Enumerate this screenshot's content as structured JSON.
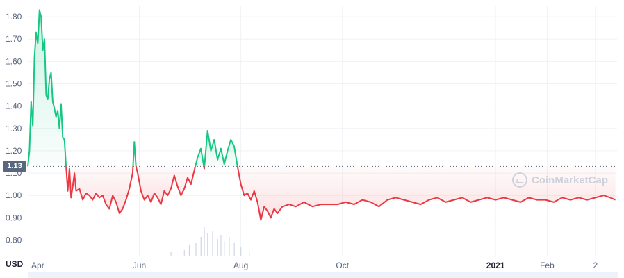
{
  "watermark": {
    "text": "CoinMarketCap",
    "icon": "coinmarketcap-logo-icon"
  },
  "currency_label": "USD",
  "colors": {
    "up": "#16c784",
    "down": "#ea3943",
    "up_fill": "#16c784",
    "down_fill": "#ea3943",
    "volume": "#cfd6e4"
  },
  "chart_data": {
    "type": "line",
    "title": "",
    "xlabel": "",
    "ylabel": "USD",
    "reference_value": 1.13,
    "reference_label": "1.13",
    "ylim": [
      0.73,
      1.85
    ],
    "y_ticks": [
      "0.80",
      "0.90",
      "1.00",
      "1.10",
      "1.20",
      "1.30",
      "1.40",
      "1.50",
      "1.60",
      "1.70",
      "1.80"
    ],
    "y_tick_values": [
      0.8,
      0.9,
      1.0,
      1.1,
      1.2,
      1.3,
      1.4,
      1.5,
      1.6,
      1.7,
      1.8
    ],
    "x_ticks": [
      {
        "label": "Apr",
        "date": "2020-04-01",
        "bold": false
      },
      {
        "label": "Jun",
        "date": "2020-06-01",
        "bold": false
      },
      {
        "label": "Aug",
        "date": "2020-08-01",
        "bold": false
      },
      {
        "label": "Oct",
        "date": "2020-10-01",
        "bold": false
      },
      {
        "label": "2021",
        "date": "2021-01-01",
        "bold": true
      },
      {
        "label": "Feb",
        "date": "2021-02-01",
        "bold": false
      },
      {
        "label": "2",
        "date": "2021-03-02",
        "bold": false
      }
    ],
    "x_range": [
      "2020-03-26",
      "2021-03-15"
    ],
    "grid": true,
    "series": [
      {
        "price": [
          [
            "2020-03-26",
            1.13
          ],
          [
            "2020-03-27",
            1.2
          ],
          [
            "2020-03-28",
            1.42
          ],
          [
            "2020-03-29",
            1.31
          ],
          [
            "2020-03-30",
            1.62
          ],
          [
            "2020-03-31",
            1.73
          ],
          [
            "2020-04-01",
            1.68
          ],
          [
            "2020-04-02",
            1.83
          ],
          [
            "2020-04-03",
            1.8
          ],
          [
            "2020-04-04",
            1.65
          ],
          [
            "2020-04-05",
            1.7
          ],
          [
            "2020-04-06",
            1.45
          ],
          [
            "2020-04-07",
            1.43
          ],
          [
            "2020-04-08",
            1.52
          ],
          [
            "2020-04-09",
            1.55
          ],
          [
            "2020-04-10",
            1.42
          ],
          [
            "2020-04-11",
            1.39
          ],
          [
            "2020-04-12",
            1.35
          ],
          [
            "2020-04-13",
            1.38
          ],
          [
            "2020-04-14",
            1.3
          ],
          [
            "2020-04-15",
            1.41
          ],
          [
            "2020-04-16",
            1.26
          ],
          [
            "2020-04-17",
            1.25
          ],
          [
            "2020-04-18",
            1.13
          ],
          [
            "2020-04-19",
            1.02
          ],
          [
            "2020-04-20",
            1.12
          ],
          [
            "2020-04-21",
            0.99
          ],
          [
            "2020-04-22",
            1.04
          ],
          [
            "2020-04-23",
            1.1
          ],
          [
            "2020-04-24",
            1.02
          ],
          [
            "2020-04-26",
            1.03
          ],
          [
            "2020-04-28",
            0.98
          ],
          [
            "2020-04-30",
            1.01
          ],
          [
            "2020-05-02",
            1.0
          ],
          [
            "2020-05-04",
            0.98
          ],
          [
            "2020-05-06",
            1.01
          ],
          [
            "2020-05-08",
            0.99
          ],
          [
            "2020-05-10",
            1.0
          ],
          [
            "2020-05-12",
            0.96
          ],
          [
            "2020-05-14",
            0.94
          ],
          [
            "2020-05-16",
            1.0
          ],
          [
            "2020-05-18",
            0.97
          ],
          [
            "2020-05-20",
            0.92
          ],
          [
            "2020-05-22",
            0.94
          ],
          [
            "2020-05-24",
            0.98
          ],
          [
            "2020-05-26",
            1.03
          ],
          [
            "2020-05-28",
            1.1
          ],
          [
            "2020-05-29",
            1.24
          ],
          [
            "2020-05-30",
            1.13
          ],
          [
            "2020-05-31",
            1.1
          ],
          [
            "2020-06-02",
            1.02
          ],
          [
            "2020-06-04",
            0.98
          ],
          [
            "2020-06-06",
            1.0
          ],
          [
            "2020-06-08",
            0.97
          ],
          [
            "2020-06-10",
            1.01
          ],
          [
            "2020-06-12",
            0.99
          ],
          [
            "2020-06-14",
            0.96
          ],
          [
            "2020-06-16",
            1.02
          ],
          [
            "2020-06-18",
            1.0
          ],
          [
            "2020-06-20",
            1.03
          ],
          [
            "2020-06-22",
            1.09
          ],
          [
            "2020-06-24",
            1.04
          ],
          [
            "2020-06-26",
            1.0
          ],
          [
            "2020-06-28",
            1.03
          ],
          [
            "2020-06-30",
            1.08
          ],
          [
            "2020-07-02",
            1.05
          ],
          [
            "2020-07-04",
            1.11
          ],
          [
            "2020-07-06",
            1.17
          ],
          [
            "2020-07-08",
            1.21
          ],
          [
            "2020-07-10",
            1.12
          ],
          [
            "2020-07-12",
            1.29
          ],
          [
            "2020-07-14",
            1.2
          ],
          [
            "2020-07-16",
            1.25
          ],
          [
            "2020-07-18",
            1.16
          ],
          [
            "2020-07-20",
            1.21
          ],
          [
            "2020-07-22",
            1.14
          ],
          [
            "2020-07-24",
            1.2
          ],
          [
            "2020-07-26",
            1.25
          ],
          [
            "2020-07-28",
            1.22
          ],
          [
            "2020-07-30",
            1.13
          ],
          [
            "2020-08-01",
            1.05
          ],
          [
            "2020-08-03",
            1.0
          ],
          [
            "2020-08-05",
            1.01
          ],
          [
            "2020-08-07",
            0.98
          ],
          [
            "2020-08-09",
            1.02
          ],
          [
            "2020-08-11",
            0.97
          ],
          [
            "2020-08-13",
            0.89
          ],
          [
            "2020-08-15",
            0.95
          ],
          [
            "2020-08-17",
            0.93
          ],
          [
            "2020-08-19",
            0.9
          ],
          [
            "2020-08-21",
            0.94
          ],
          [
            "2020-08-23",
            0.92
          ],
          [
            "2020-08-26",
            0.95
          ],
          [
            "2020-08-30",
            0.96
          ],
          [
            "2020-09-03",
            0.95
          ],
          [
            "2020-09-08",
            0.97
          ],
          [
            "2020-09-13",
            0.95
          ],
          [
            "2020-09-18",
            0.96
          ],
          [
            "2020-09-23",
            0.96
          ],
          [
            "2020-09-28",
            0.96
          ],
          [
            "2020-10-03",
            0.97
          ],
          [
            "2020-10-08",
            0.96
          ],
          [
            "2020-10-13",
            0.98
          ],
          [
            "2020-10-18",
            0.97
          ],
          [
            "2020-10-23",
            0.95
          ],
          [
            "2020-10-28",
            0.98
          ],
          [
            "2020-11-02",
            0.99
          ],
          [
            "2020-11-07",
            0.98
          ],
          [
            "2020-11-12",
            0.97
          ],
          [
            "2020-11-17",
            0.96
          ],
          [
            "2020-11-22",
            0.98
          ],
          [
            "2020-11-27",
            0.99
          ],
          [
            "2020-12-02",
            0.97
          ],
          [
            "2020-12-07",
            0.98
          ],
          [
            "2020-12-12",
            0.99
          ],
          [
            "2020-12-17",
            0.97
          ],
          [
            "2020-12-22",
            0.98
          ],
          [
            "2020-12-27",
            0.99
          ],
          [
            "2021-01-01",
            0.98
          ],
          [
            "2021-01-06",
            0.99
          ],
          [
            "2021-01-11",
            0.98
          ],
          [
            "2021-01-16",
            0.97
          ],
          [
            "2021-01-21",
            0.99
          ],
          [
            "2021-01-26",
            0.98
          ],
          [
            "2021-01-31",
            0.98
          ],
          [
            "2021-02-05",
            0.97
          ],
          [
            "2021-02-10",
            0.99
          ],
          [
            "2021-02-15",
            0.98
          ],
          [
            "2021-02-20",
            0.99
          ],
          [
            "2021-02-25",
            0.98
          ],
          [
            "2021-03-02",
            0.99
          ],
          [
            "2021-03-07",
            1.0
          ],
          [
            "2021-03-11",
            0.99
          ],
          [
            "2021-03-14",
            0.98
          ]
        ]
      }
    ],
    "volume": [
      [
        "2020-07-01",
        0.25
      ],
      [
        "2020-07-05",
        0.3
      ],
      [
        "2020-07-08",
        0.45
      ],
      [
        "2020-07-10",
        0.7
      ],
      [
        "2020-07-12",
        0.55
      ],
      [
        "2020-07-15",
        0.6
      ],
      [
        "2020-07-18",
        0.4
      ],
      [
        "2020-07-20",
        0.5
      ],
      [
        "2020-07-22",
        0.35
      ],
      [
        "2020-07-25",
        0.45
      ],
      [
        "2020-07-28",
        0.3
      ],
      [
        "2020-08-01",
        0.2
      ],
      [
        "2020-06-28",
        0.15
      ],
      [
        "2020-06-20",
        0.1
      ],
      [
        "2020-08-06",
        0.1
      ]
    ]
  }
}
